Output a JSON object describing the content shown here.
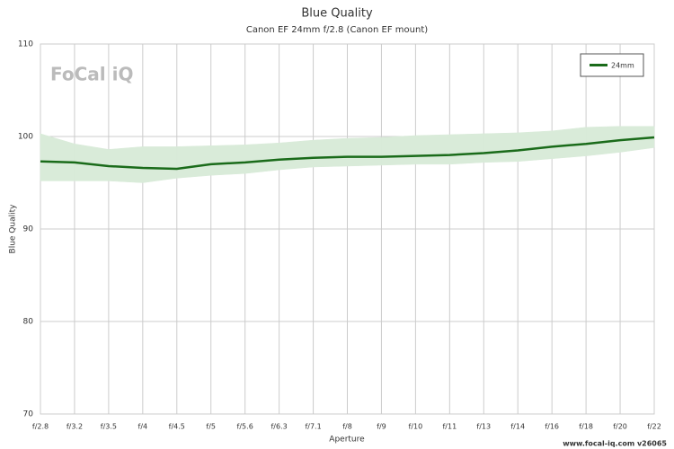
{
  "chart_data": {
    "type": "line",
    "title": "Blue Quality",
    "subtitle": "Canon EF 24mm f/2.8 (Canon EF mount)",
    "x_label": "Aperture",
    "y_label": "Blue Quality",
    "logo": "FoCal iQ",
    "footer": "www.focal-iq.com  v26065",
    "categories": [
      "f/2.8",
      "f/3.2",
      "f/3.5",
      "f/4",
      "f/4.5",
      "f/5",
      "f/5.6",
      "f/6.3",
      "f/7.1",
      "f/8",
      "f/9",
      "f/10",
      "f/11",
      "f/13",
      "f/14",
      "f/16",
      "f/18",
      "f/20",
      "f/22"
    ],
    "series": [
      {
        "name": "24mm",
        "color": "#1a6b1a",
        "values": [
          97.3,
          97.2,
          96.8,
          96.6,
          96.5,
          97.0,
          97.2,
          97.5,
          97.7,
          97.8,
          97.8,
          97.9,
          98.0,
          98.2,
          98.5,
          98.9,
          99.2,
          99.6,
          99.9
        ],
        "range_high": [
          100.3,
          99.2,
          98.6,
          98.9,
          98.9,
          99.0,
          99.1,
          99.3,
          99.6,
          99.8,
          99.9,
          100.1,
          100.2,
          100.3,
          100.4,
          100.6,
          101.0,
          101.1,
          101.1
        ],
        "range_low": [
          95.2,
          95.2,
          95.2,
          95.0,
          95.5,
          95.8,
          96.0,
          96.4,
          96.7,
          96.8,
          96.9,
          97.0,
          97.0,
          97.2,
          97.3,
          97.6,
          97.9,
          98.3,
          98.8
        ],
        "range_color": "#d9ebd9"
      }
    ],
    "ylim": [
      70,
      110
    ],
    "yticks": [
      70,
      80,
      90,
      100,
      110
    ],
    "grid": true,
    "legend": "top-right"
  }
}
